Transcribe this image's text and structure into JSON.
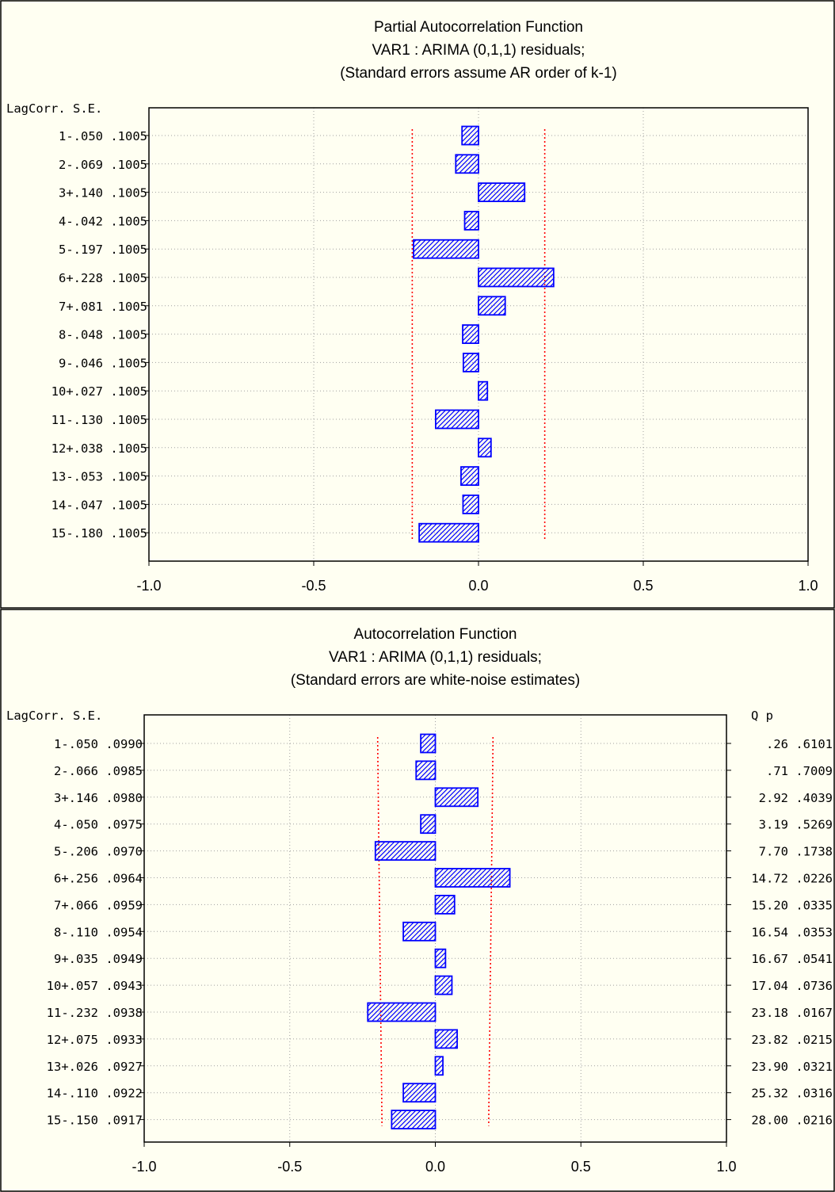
{
  "chart_data": [
    {
      "type": "bar",
      "orientation": "horizontal",
      "title": "Partial Autocorrelation Function",
      "subtitle": "VAR1 : ARIMA (0,1,1) residuals;",
      "subtitle2": "(Standard errors assume AR order of k-1)",
      "header_label": "LagCorr. S.E.",
      "xlim": [
        -1.0,
        1.0
      ],
      "xticks": [
        "-1.0",
        "-0.5",
        "0.0",
        "0.5",
        "1.0"
      ],
      "grid": true,
      "row_labels": [
        "1-.050 .1005",
        "2-.069 .1005",
        "3+.140 .1005",
        "4-.042 .1005",
        "5-.197 .1005",
        "6+.228 .1005",
        "7+.081 .1005",
        "8-.048 .1005",
        "9-.046 .1005",
        "10+.027 .1005",
        "11-.130 .1005",
        "12+.038 .1005",
        "13-.053 .1005",
        "14-.047 .1005",
        "15-.180 .1005"
      ],
      "lags": [
        1,
        2,
        3,
        4,
        5,
        6,
        7,
        8,
        9,
        10,
        11,
        12,
        13,
        14,
        15
      ],
      "values": [
        -0.05,
        -0.069,
        0.14,
        -0.042,
        -0.197,
        0.228,
        0.081,
        -0.048,
        -0.046,
        0.027,
        -0.13,
        0.038,
        -0.053,
        -0.047,
        -0.18
      ],
      "se": [
        0.1005,
        0.1005,
        0.1005,
        0.1005,
        0.1005,
        0.1005,
        0.1005,
        0.1005,
        0.1005,
        0.1005,
        0.1005,
        0.1005,
        0.1005,
        0.1005,
        0.1005
      ],
      "bar_color": "#0000ff",
      "limit_color": "#ff0000"
    },
    {
      "type": "bar",
      "orientation": "horizontal",
      "title": "Autocorrelation Function",
      "subtitle": "VAR1 : ARIMA (0,1,1) residuals;",
      "subtitle2": "(Standard errors are white-noise estimates)",
      "header_label": "LagCorr. S.E.",
      "right_header": "Q    p",
      "xlim": [
        -1.0,
        1.0
      ],
      "xticks": [
        "-1.0",
        "-0.5",
        "0.0",
        "0.5",
        "1.0"
      ],
      "grid": true,
      "row_labels": [
        "1-.050 .0990",
        "2-.066 .0985",
        "3+.146 .0980",
        "4-.050 .0975",
        "5-.206 .0970",
        "6+.256 .0964",
        "7+.066 .0959",
        "8-.110 .0954",
        "9+.035 .0949",
        "10+.057 .0943",
        "11-.232 .0938",
        "12+.075 .0933",
        "13+.026 .0927",
        "14-.110 .0922",
        "15-.150 .0917"
      ],
      "right_labels": [
        "  .26 .6101",
        "  .71 .7009",
        " 2.92 .4039",
        " 3.19 .5269",
        " 7.70 .1738",
        "14.72 .0226",
        "15.20 .0335",
        "16.54 .0353",
        "16.67 .0541",
        "17.04 .0736",
        "23.18 .0167",
        "23.82 .0215",
        "23.90 .0321",
        "25.32 .0316",
        "28.00 .0216"
      ],
      "lags": [
        1,
        2,
        3,
        4,
        5,
        6,
        7,
        8,
        9,
        10,
        11,
        12,
        13,
        14,
        15
      ],
      "values": [
        -0.05,
        -0.066,
        0.146,
        -0.05,
        -0.206,
        0.256,
        0.066,
        -0.11,
        0.035,
        0.057,
        -0.232,
        0.075,
        0.026,
        -0.11,
        -0.15
      ],
      "se": [
        0.099,
        0.0985,
        0.098,
        0.0975,
        0.097,
        0.0964,
        0.0959,
        0.0954,
        0.0949,
        0.0943,
        0.0938,
        0.0933,
        0.0927,
        0.0922,
        0.0917
      ],
      "Q": [
        0.26,
        0.71,
        2.92,
        3.19,
        7.7,
        14.72,
        15.2,
        16.54,
        16.67,
        17.04,
        23.18,
        23.82,
        23.9,
        25.32,
        28.0
      ],
      "p": [
        0.6101,
        0.7009,
        0.4039,
        0.5269,
        0.1738,
        0.0226,
        0.0335,
        0.0353,
        0.0541,
        0.0736,
        0.0167,
        0.0215,
        0.0321,
        0.0316,
        0.0216
      ],
      "bar_color": "#0000ff",
      "limit_color": "#ff0000"
    }
  ]
}
